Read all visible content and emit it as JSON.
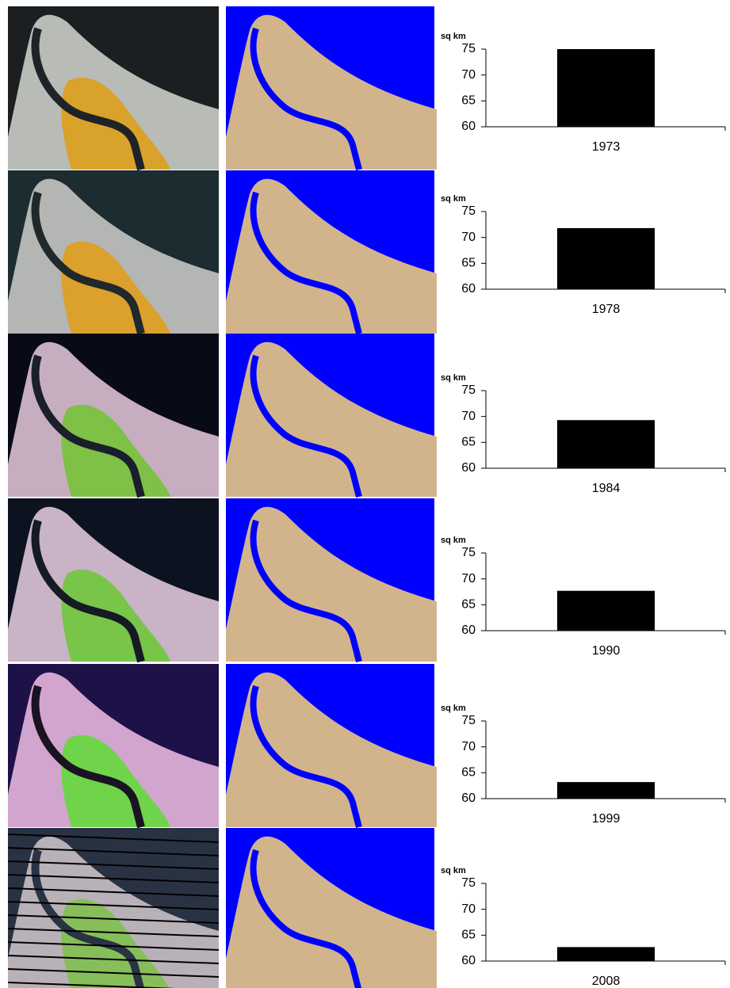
{
  "chart_data": [
    {
      "type": "bar",
      "y_label": "sq km",
      "categories": [
        "1973"
      ],
      "values": [
        75
      ],
      "color": "#000000",
      "ylim": [
        60,
        75
      ],
      "yticks": [
        60,
        65,
        70,
        75
      ]
    },
    {
      "type": "bar",
      "y_label": "sq km",
      "categories": [
        "1978"
      ],
      "values": [
        71.8
      ],
      "color": "#000000",
      "ylim": [
        60,
        75
      ],
      "yticks": [
        60,
        65,
        70,
        75
      ]
    },
    {
      "type": "bar",
      "y_label": "sq km",
      "categories": [
        "1984"
      ],
      "values": [
        69.3
      ],
      "color": "#000000",
      "ylim": [
        60,
        75
      ],
      "yticks": [
        60,
        65,
        70,
        75
      ]
    },
    {
      "type": "bar",
      "y_label": "sq km",
      "categories": [
        "1990"
      ],
      "values": [
        67.7
      ],
      "color": "#000000",
      "ylim": [
        60,
        75
      ],
      "yticks": [
        60,
        65,
        70,
        75
      ]
    },
    {
      "type": "bar",
      "y_label": "sq km",
      "categories": [
        "1999"
      ],
      "values": [
        63.2
      ],
      "color": "#000000",
      "ylim": [
        60,
        75
      ],
      "yticks": [
        60,
        65,
        70,
        75
      ]
    },
    {
      "type": "bar",
      "y_label": "sq km",
      "categories": [
        "2008"
      ],
      "values": [
        62.7
      ],
      "color": "#000000",
      "ylim": [
        60,
        75
      ],
      "yticks": [
        60,
        65,
        70,
        75
      ]
    }
  ]
}
